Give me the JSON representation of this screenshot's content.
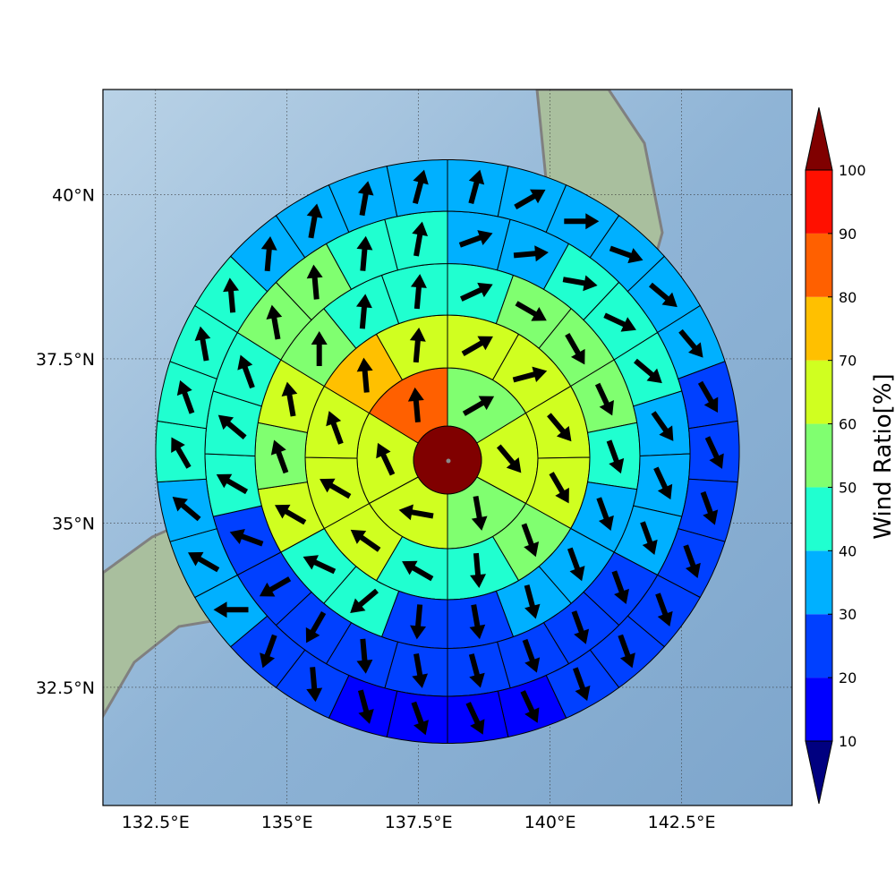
{
  "chart_data": {
    "type": "polar-wind",
    "xlim": [
      131.5,
      144.6
    ],
    "ylim": [
      30.7,
      41.6
    ],
    "xticks": [
      {
        "value": 132.5,
        "label": "132.5°E"
      },
      {
        "value": 135,
        "label": "135°E"
      },
      {
        "value": 137.5,
        "label": "137.5°E"
      },
      {
        "value": 140,
        "label": "140°E"
      },
      {
        "value": 142.5,
        "label": "142.5°E"
      }
    ],
    "yticks": [
      {
        "value": 32.5,
        "label": "32.5°N"
      },
      {
        "value": 35,
        "label": "35°N"
      },
      {
        "value": 37.5,
        "label": "37.5°N"
      },
      {
        "value": 40,
        "label": "40°N"
      }
    ],
    "grid": true,
    "center": {
      "value": 105
    },
    "rings": [
      {
        "values": [
          55,
          65,
          55,
          65,
          65,
          85
        ],
        "directions": [
          60,
          140,
          170,
          280,
          335,
          355
        ]
      },
      {
        "values": [
          65,
          65,
          65,
          65,
          55,
          45,
          45,
          65,
          65,
          65,
          75,
          65
        ],
        "directions": [
          60,
          75,
          140,
          150,
          160,
          175,
          300,
          305,
          300,
          340,
          355,
          5
        ]
      },
      {
        "values": [
          45,
          55,
          55,
          55,
          45,
          35,
          35,
          35,
          25,
          25,
          45,
          45,
          65,
          55,
          65,
          55,
          45,
          45
        ],
        "directions": [
          65,
          120,
          150,
          155,
          160,
          160,
          160,
          165,
          170,
          185,
          230,
          295,
          300,
          340,
          350,
          0,
          5,
          5
        ]
      },
      {
        "values": [
          35,
          35,
          45,
          45,
          45,
          35,
          35,
          35,
          25,
          25,
          25,
          25,
          25,
          25,
          25,
          25,
          25,
          45,
          45,
          45,
          55,
          55,
          45,
          45
        ],
        "directions": [
          70,
          85,
          100,
          115,
          130,
          145,
          155,
          160,
          160,
          160,
          160,
          165,
          170,
          175,
          210,
          240,
          290,
          300,
          310,
          340,
          350,
          355,
          5,
          10
        ]
      },
      {
        "values": [
          35,
          35,
          35,
          35,
          35,
          35,
          25,
          25,
          25,
          25,
          25,
          25,
          25,
          15,
          15,
          15,
          15,
          25,
          25,
          35,
          35,
          35,
          45,
          45,
          45,
          45,
          35,
          35,
          35,
          35
        ],
        "directions": [
          15,
          60,
          90,
          110,
          130,
          140,
          150,
          155,
          160,
          160,
          160,
          160,
          160,
          155,
          155,
          160,
          165,
          175,
          200,
          270,
          300,
          310,
          330,
          340,
          350,
          355,
          5,
          10,
          10,
          15
        ]
      }
    ],
    "colorbar": {
      "label": "Wind Ratio[%]",
      "levels": [
        10,
        20,
        30,
        40,
        50,
        60,
        70,
        80,
        90,
        100
      ],
      "colors": [
        "#0000ff",
        "#0040ff",
        "#00b0ff",
        "#20ffd0",
        "#80ff70",
        "#d0ff20",
        "#ffc000",
        "#ff6000",
        "#ff1000"
      ],
      "under_color": "#000080",
      "over_color": "#800000"
    }
  }
}
